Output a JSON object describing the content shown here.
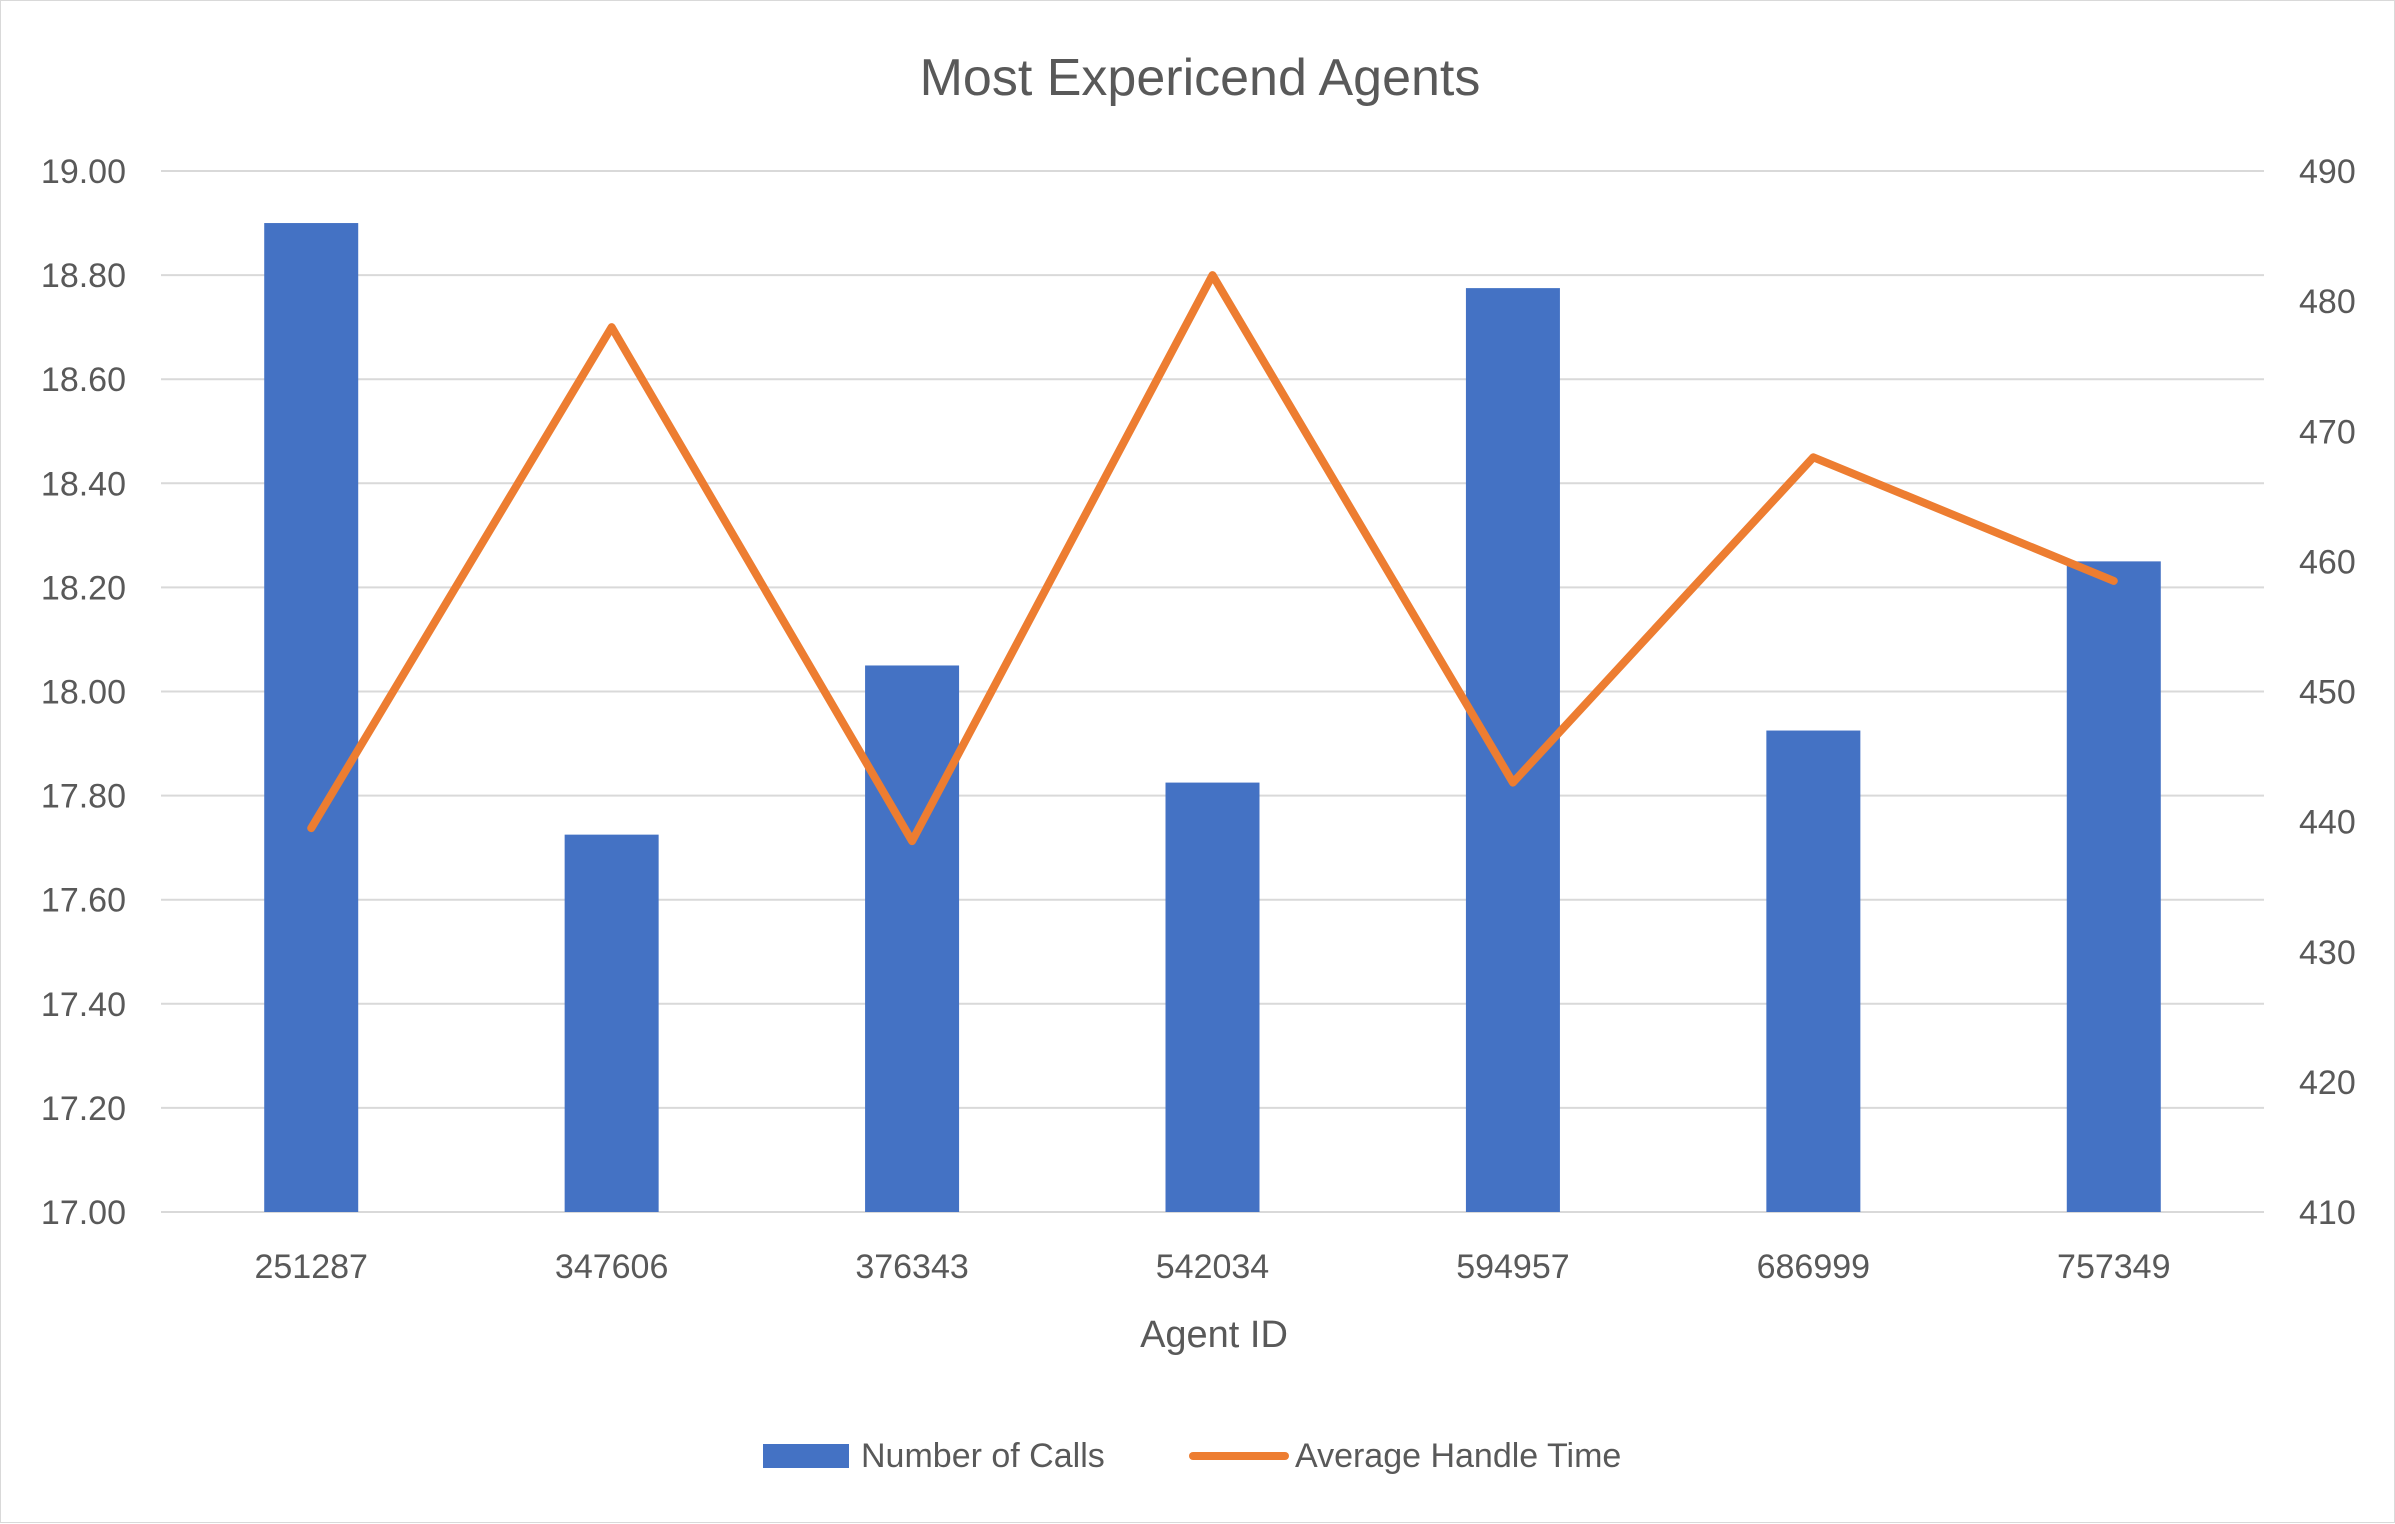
{
  "chart_data": {
    "type": "bar",
    "title": "Most Expericend Agents",
    "xlabel": "Agent ID",
    "ylabel": "",
    "y2label": "",
    "categories": [
      "251287",
      "347606",
      "376343",
      "542034",
      "594957",
      "686999",
      "757349"
    ],
    "ylim": [
      17.0,
      19.0
    ],
    "y2lim": [
      410,
      490
    ],
    "y_ticks": [
      "17.00",
      "17.20",
      "17.40",
      "17.60",
      "17.80",
      "18.00",
      "18.20",
      "18.40",
      "18.60",
      "18.80",
      "19.00"
    ],
    "y2_ticks": [
      "410",
      "420",
      "430",
      "440",
      "450",
      "460",
      "470",
      "480",
      "490"
    ],
    "grid": true,
    "legend_position": "bottom",
    "series": [
      {
        "name": "Number of Calls",
        "type": "bar",
        "axis": "left",
        "color": "#4472C4",
        "values": [
          18.9,
          17.725,
          18.05,
          17.825,
          18.775,
          17.925,
          18.25
        ]
      },
      {
        "name": "Average Handle Time",
        "type": "line",
        "axis": "right",
        "color": "#ED7D31",
        "values": [
          439.5,
          478.0,
          438.5,
          482.0,
          443.0,
          468.0,
          458.5
        ]
      }
    ]
  }
}
